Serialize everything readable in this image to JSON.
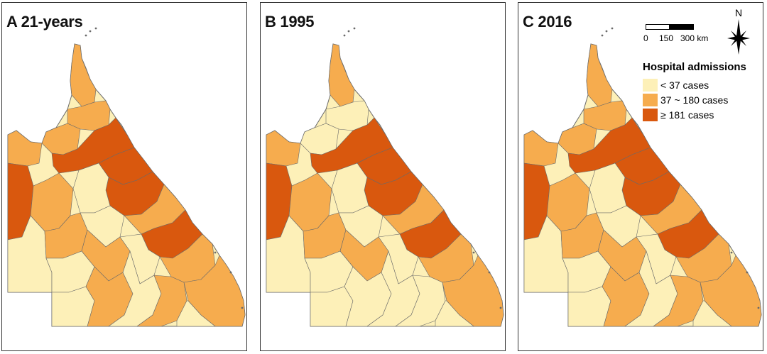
{
  "panels": [
    {
      "id": "a",
      "title": "A 21-years",
      "fills": {
        "north": "mid",
        "cape": "mid",
        "west": "high",
        "centre": "high",
        "south": "mixed"
      }
    },
    {
      "id": "b",
      "title": "B 1995",
      "fills": {
        "north": "low",
        "cape": "mid",
        "west": "high",
        "centre": "high",
        "south": "lowmixed"
      }
    },
    {
      "id": "c",
      "title": "C 2016",
      "fills": {
        "north": "mid",
        "cape": "mid",
        "west": "high",
        "centre": "high",
        "south": "mixed"
      }
    }
  ],
  "scale_bar": {
    "labels": [
      "0",
      "150",
      "300 km"
    ]
  },
  "north_arrow": {
    "label": "N",
    "icon": "compass-rose-icon"
  },
  "legend": {
    "title": "Hospital admissions",
    "items": [
      {
        "label": "< 37 cases",
        "color": "#fdf0b8"
      },
      {
        "label": "37 ~ 180 cases",
        "color": "#f6ac4e"
      },
      {
        "label": "≥ 181 cases",
        "color": "#d9580e"
      }
    ]
  },
  "colors": {
    "low": "#fdf0b8",
    "mid": "#f6ac4e",
    "high": "#d9580e",
    "border": "#6a6a6a"
  }
}
